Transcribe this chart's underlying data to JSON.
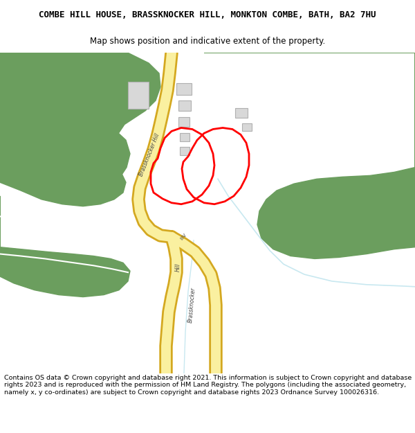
{
  "title": "COMBE HILL HOUSE, BRASSKNOCKER HILL, MONKTON COMBE, BATH, BA2 7HU",
  "subtitle": "Map shows position and indicative extent of the property.",
  "footer": "Contains OS data © Crown copyright and database right 2021. This information is subject to Crown copyright and database rights 2023 and is reproduced with the permission of HM Land Registry. The polygons (including the associated geometry, namely x, y co-ordinates) are subject to Crown copyright and database rights 2023 Ordnance Survey 100026316.",
  "bg_color": "#ffffff",
  "map_bg": "#ffffff",
  "green_color": "#6b9e5e",
  "road_fill": "#faf0a0",
  "road_border": "#d4a820",
  "plot_color": "#ff0000",
  "plot_linewidth": 2.0,
  "building_color": "#d8d8d8",
  "building_edgecolor": "#b0b0b0",
  "light_blue": "#c8e8f0",
  "title_fontsize": 9.0,
  "subtitle_fontsize": 8.5,
  "footer_fontsize": 6.8
}
